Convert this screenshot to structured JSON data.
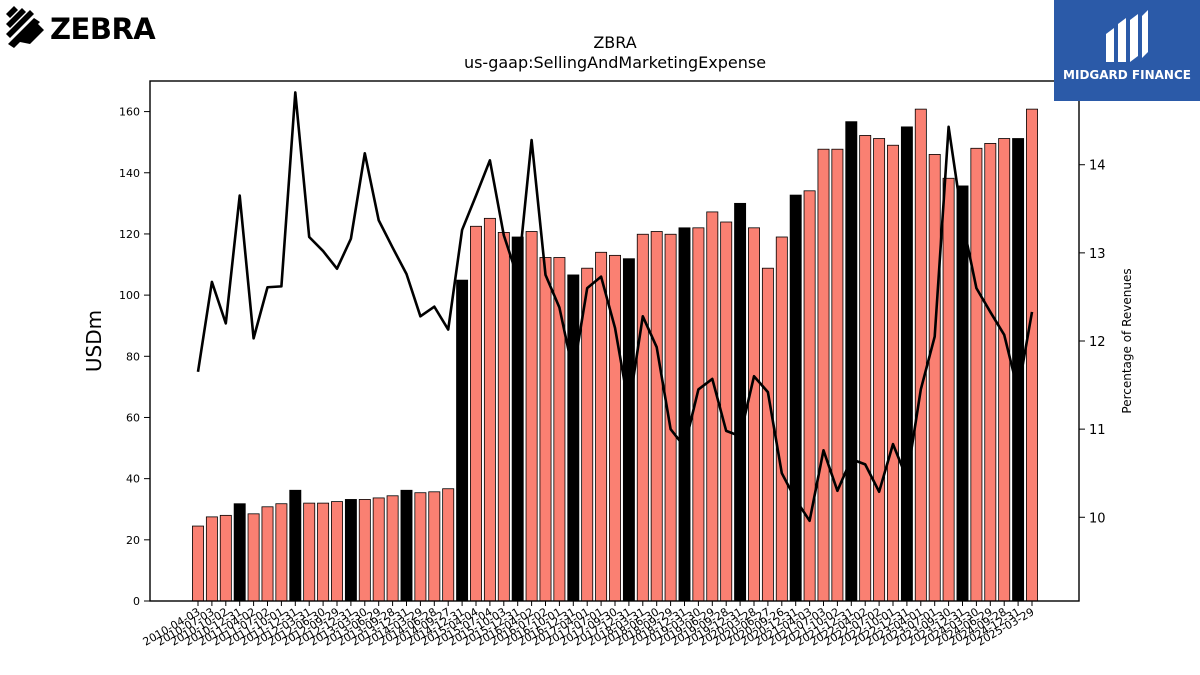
{
  "logos": {
    "left_brand": "ZEBRA",
    "right_brand": "MIDGARD FINANCE"
  },
  "chart_data": {
    "type": "bar",
    "title": "ZBRA",
    "subtitle": "us-gaap:SellingAndMarketingExpense",
    "ylabel": "USDm",
    "ylabel_right": "Percentage of Revenues",
    "ylim": [
      0,
      170
    ],
    "ylim_right": [
      9.05,
      14.95
    ],
    "yticks": [
      0,
      20,
      40,
      60,
      80,
      100,
      120,
      140,
      160
    ],
    "yticks_right": [
      10,
      11,
      12,
      13,
      14
    ],
    "grid": false,
    "x_tick_labels": [
      "2010-04-03",
      "2010-07-03",
      "2010-10-02",
      "2010-12-31",
      "2011-04-02",
      "2011-07-02",
      "2011-10-01",
      "2011-12-31",
      "2012-03-31",
      "2012-06-30",
      "2012-09-29",
      "2012-12-31",
      "2013-03-30",
      "2013-06-29",
      "2013-09-28",
      "2013-12-31",
      "2014-03-29",
      "2014-06-28",
      "2014-09-27",
      "2014-12-31",
      "2015-04-04",
      "2015-07-04",
      "2015-10-03",
      "2015-12-31",
      "2016-04-02",
      "2016-07-02",
      "2016-10-01",
      "2016-12-31",
      "2017-04-01",
      "2017-07-01",
      "2017-09-30",
      "2017-12-31",
      "2018-03-31",
      "2018-06-30",
      "2018-09-29",
      "2018-12-31",
      "2019-03-30",
      "2019-06-29",
      "2019-09-28",
      "2019-12-31",
      "2020-03-28",
      "2020-06-27",
      "2020-09-26",
      "2020-12-31",
      "2021-04-03",
      "2021-07-03",
      "2021-10-02",
      "2021-12-31",
      "2022-04-02",
      "2022-07-02",
      "2022-10-01",
      "2022-12-31",
      "2023-04-01",
      "2023-07-01",
      "2023-09-30",
      "2023-12-31",
      "2024-03-30",
      "2024-06-29",
      "2024-09-28",
      "2024-12-31",
      "2025-03-29"
    ],
    "highlight_color": "#000000",
    "bar_color": "#fa8072",
    "bars": [
      {
        "value": 24.5,
        "highlight": false
      },
      {
        "value": 27.5,
        "highlight": false
      },
      {
        "value": 28.0,
        "highlight": false
      },
      {
        "value": 31.8,
        "highlight": true
      },
      {
        "value": 28.5,
        "highlight": false
      },
      {
        "value": 30.8,
        "highlight": false
      },
      {
        "value": 31.8,
        "highlight": false
      },
      {
        "value": 36.2,
        "highlight": true
      },
      {
        "value": 32.0,
        "highlight": false
      },
      {
        "value": 32.0,
        "highlight": false
      },
      {
        "value": 32.5,
        "highlight": false
      },
      {
        "value": 33.2,
        "highlight": true
      },
      {
        "value": 33.2,
        "highlight": false
      },
      {
        "value": 33.7,
        "highlight": false
      },
      {
        "value": 34.4,
        "highlight": false
      },
      {
        "value": 36.2,
        "highlight": true
      },
      {
        "value": 35.4,
        "highlight": false
      },
      {
        "value": 35.7,
        "highlight": false
      },
      {
        "value": 36.7,
        "highlight": false
      },
      {
        "value": 104.9,
        "highlight": true
      },
      {
        "value": 122.5,
        "highlight": false
      },
      {
        "value": 125.1,
        "highlight": false
      },
      {
        "value": 120.5,
        "highlight": false
      },
      {
        "value": 119.0,
        "highlight": true
      },
      {
        "value": 120.8,
        "highlight": false
      },
      {
        "value": 112.3,
        "highlight": false
      },
      {
        "value": 112.3,
        "highlight": false
      },
      {
        "value": 106.6,
        "highlight": true
      },
      {
        "value": 108.8,
        "highlight": false
      },
      {
        "value": 114.0,
        "highlight": false
      },
      {
        "value": 113.0,
        "highlight": false
      },
      {
        "value": 111.9,
        "highlight": true
      },
      {
        "value": 119.9,
        "highlight": false
      },
      {
        "value": 120.8,
        "highlight": false
      },
      {
        "value": 119.9,
        "highlight": false
      },
      {
        "value": 122.0,
        "highlight": true
      },
      {
        "value": 122.0,
        "highlight": false
      },
      {
        "value": 127.2,
        "highlight": false
      },
      {
        "value": 123.9,
        "highlight": false
      },
      {
        "value": 130.0,
        "highlight": true
      },
      {
        "value": 122.0,
        "highlight": false
      },
      {
        "value": 108.8,
        "highlight": false
      },
      {
        "value": 119.0,
        "highlight": false
      },
      {
        "value": 132.7,
        "highlight": true
      },
      {
        "value": 134.1,
        "highlight": false
      },
      {
        "value": 147.7,
        "highlight": false
      },
      {
        "value": 147.7,
        "highlight": false
      },
      {
        "value": 156.7,
        "highlight": true
      },
      {
        "value": 152.2,
        "highlight": false
      },
      {
        "value": 151.2,
        "highlight": false
      },
      {
        "value": 149.0,
        "highlight": false
      },
      {
        "value": 155.0,
        "highlight": true
      },
      {
        "value": 160.8,
        "highlight": false
      },
      {
        "value": 146.0,
        "highlight": false
      },
      {
        "value": 138.2,
        "highlight": false
      },
      {
        "value": 135.7,
        "highlight": true
      },
      {
        "value": 148.0,
        "highlight": false
      },
      {
        "value": 149.6,
        "highlight": false
      },
      {
        "value": 151.2,
        "highlight": false
      },
      {
        "value": 151.2,
        "highlight": true
      },
      {
        "value": 160.8,
        "highlight": false
      }
    ],
    "line": [
      11.65,
      12.67,
      12.2,
      13.65,
      12.03,
      12.61,
      12.62,
      14.82,
      13.18,
      13.02,
      12.82,
      13.16,
      14.13,
      13.37,
      13.06,
      12.76,
      12.28,
      12.39,
      12.13,
      13.26,
      13.65,
      14.05,
      13.2,
      12.72,
      14.28,
      12.75,
      12.38,
      11.64,
      12.6,
      12.73,
      12.15,
      11.25,
      12.28,
      11.93,
      11.0,
      10.8,
      11.45,
      11.57,
      10.98,
      10.92,
      11.6,
      11.42,
      10.5,
      10.2,
      9.96,
      10.76,
      10.3,
      10.66,
      10.6,
      10.29,
      10.83,
      10.44,
      11.45,
      12.05,
      14.43,
      13.36,
      12.6,
      12.33,
      12.07,
      11.43,
      12.33
    ]
  }
}
